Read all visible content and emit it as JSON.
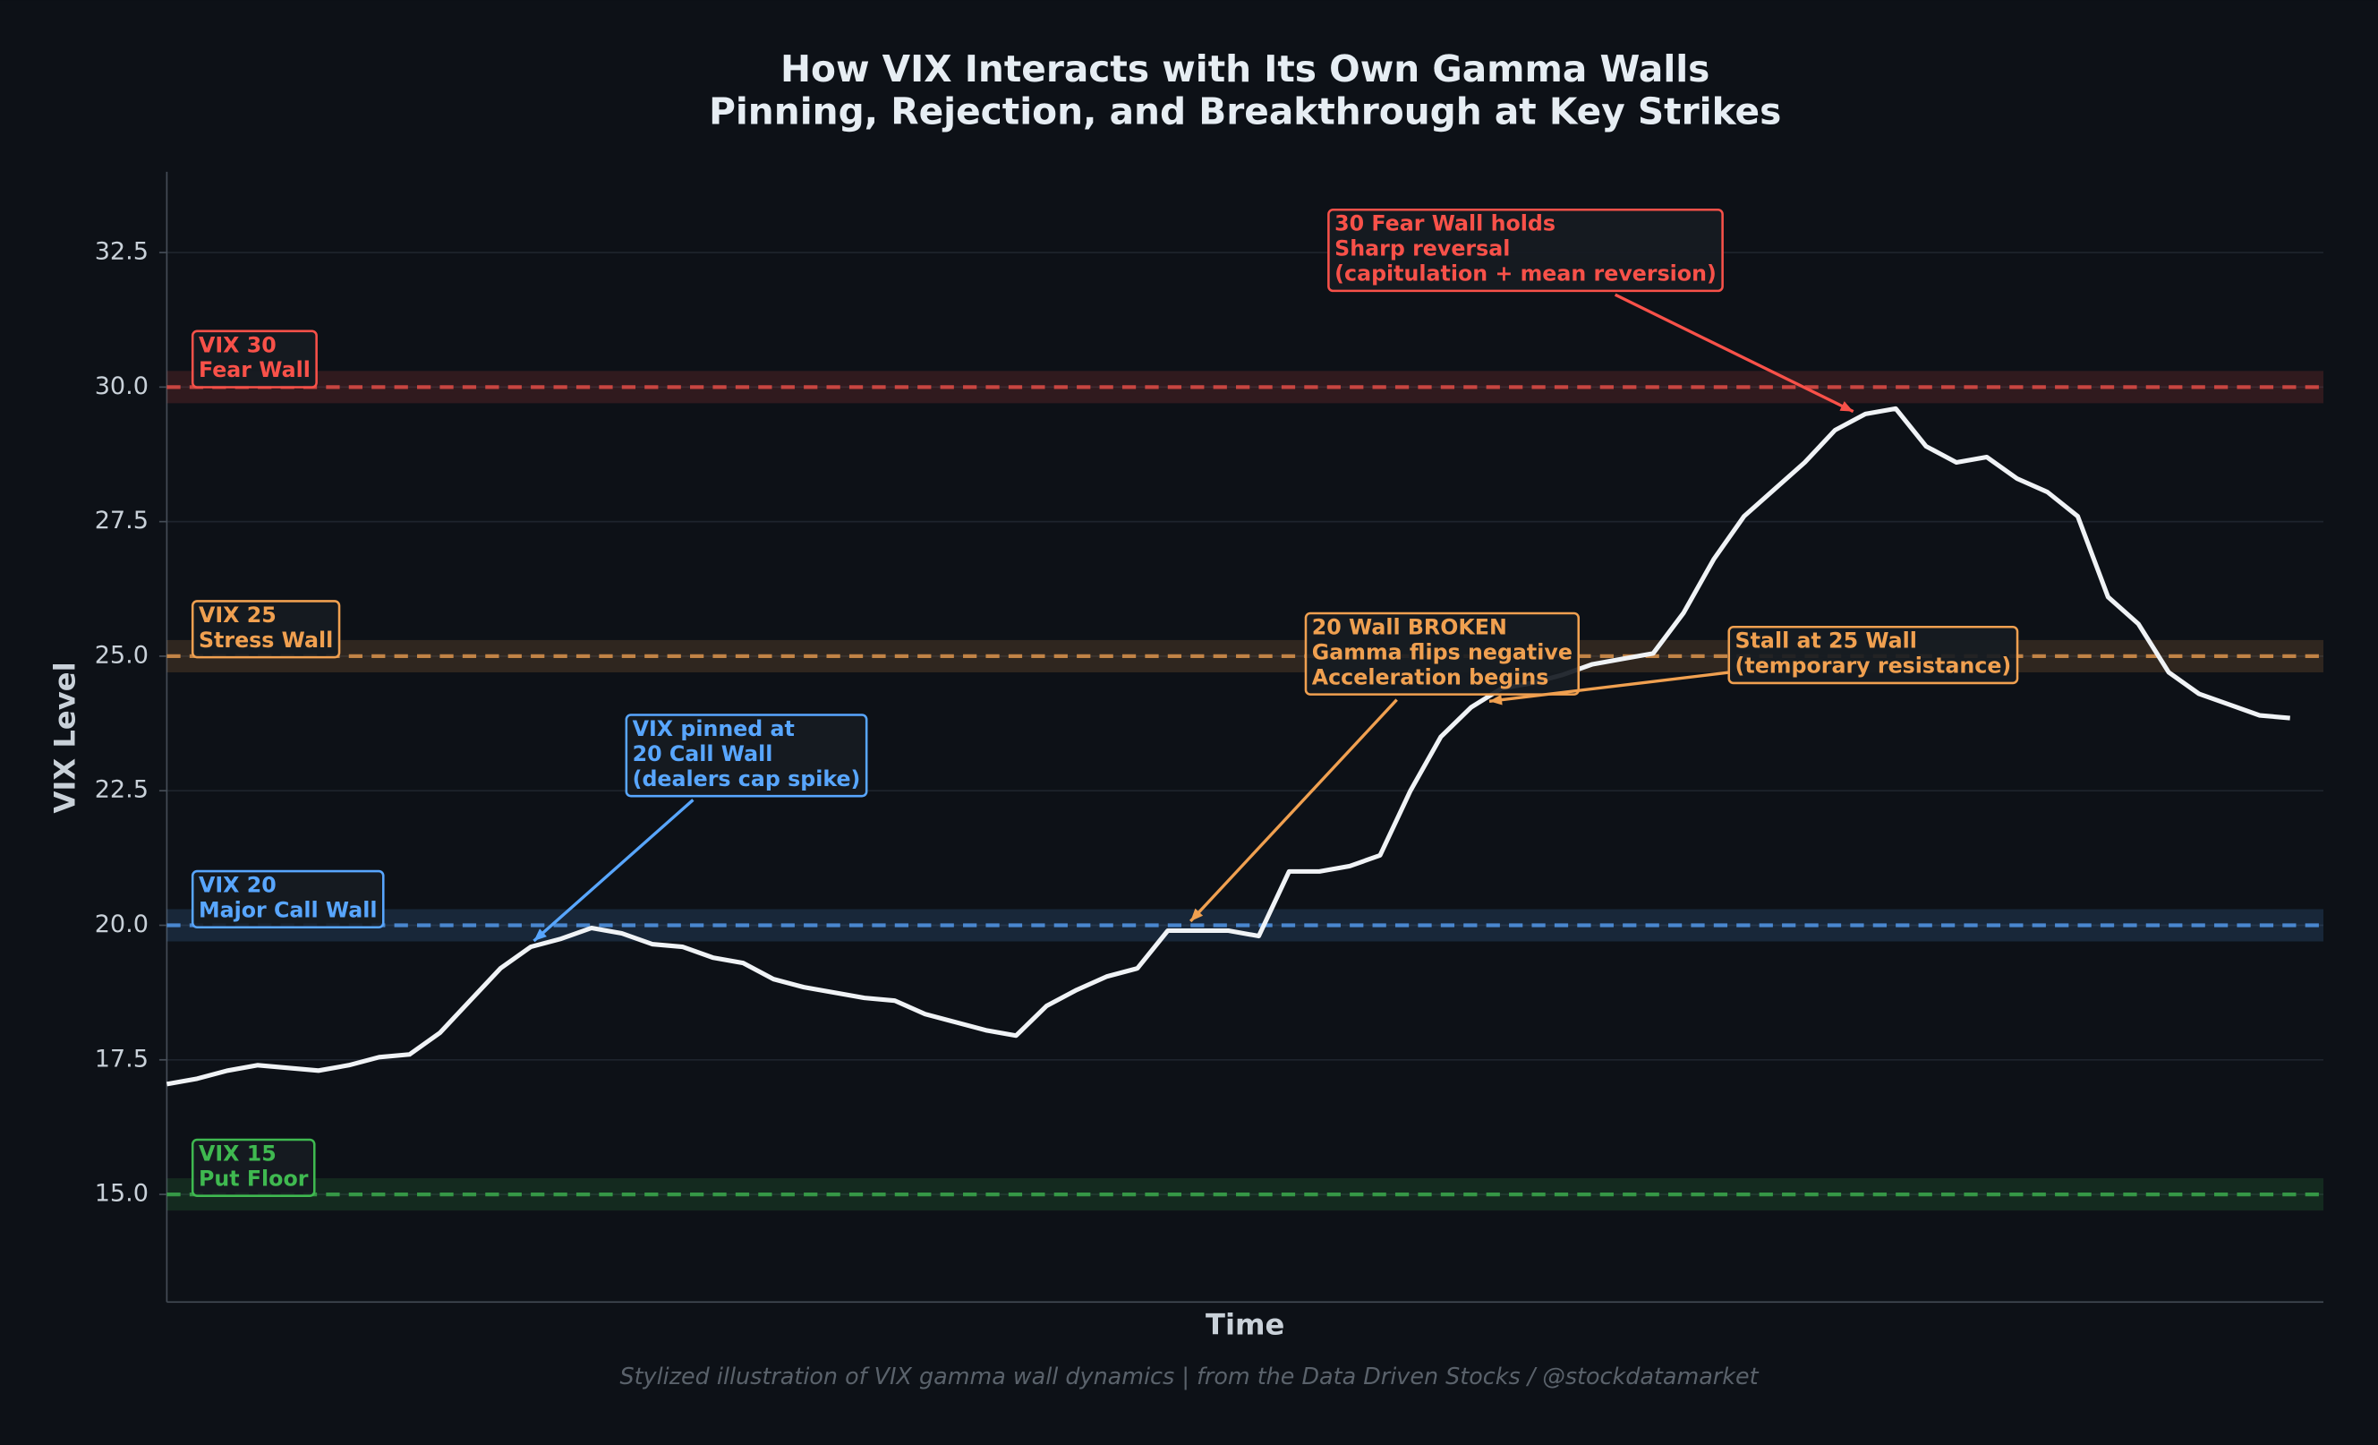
{
  "chart_data": {
    "type": "line",
    "title": "How VIX Interacts with Its Own Gamma Walls",
    "subtitle": "Pinning, Rejection, and Breakthrough at Key Strikes",
    "xlabel": "Time",
    "ylabel": "VIX Level",
    "footnote": "Stylized illustration of VIX gamma wall dynamics | from the Data Driven Stocks / @stockdatamarket",
    "ylim": [
      13,
      34
    ],
    "yticks": [
      {
        "value": 15,
        "label": "15.0"
      },
      {
        "value": 17.5,
        "label": "17.5"
      },
      {
        "value": 20,
        "label": "20.0"
      },
      {
        "value": 22.5,
        "label": "22.5"
      },
      {
        "value": 25,
        "label": "25.0"
      },
      {
        "value": 27.5,
        "label": "27.5"
      },
      {
        "value": 30,
        "label": "30.0"
      },
      {
        "value": 32.5,
        "label": "32.5"
      }
    ],
    "grid": true,
    "color": "#f0f3f6",
    "values": [
      17.05,
      17.15,
      17.3,
      17.4,
      17.35,
      17.3,
      17.4,
      17.55,
      17.6,
      18.0,
      18.6,
      19.2,
      19.6,
      19.75,
      19.95,
      19.85,
      19.65,
      19.6,
      19.4,
      19.3,
      19.0,
      18.85,
      18.75,
      18.65,
      18.6,
      18.35,
      18.2,
      18.05,
      17.95,
      18.5,
      18.8,
      19.05,
      19.2,
      19.9,
      19.9,
      19.9,
      19.8,
      21.0,
      21.0,
      21.1,
      21.3,
      22.5,
      23.5,
      24.05,
      24.4,
      24.5,
      24.65,
      24.85,
      24.95,
      25.05,
      25.8,
      26.8,
      27.6,
      28.1,
      28.6,
      29.2,
      29.5,
      29.6,
      28.9,
      28.6,
      28.7,
      28.3,
      28.05,
      27.6,
      26.1,
      25.6,
      24.7,
      24.3,
      24.1,
      23.9,
      23.85
    ],
    "walls": [
      {
        "value": 30,
        "color": "#f85149",
        "lines": [
          "VIX 30",
          "Fear Wall"
        ]
      },
      {
        "value": 25,
        "color": "#f0a050",
        "lines": [
          "VIX 25",
          "Stress Wall"
        ]
      },
      {
        "value": 20,
        "color": "#58a6ff",
        "lines": [
          "VIX 20",
          "Major Call Wall"
        ]
      },
      {
        "value": 15,
        "color": "#3fb950",
        "lines": [
          "VIX 15",
          "Put Floor"
        ]
      }
    ],
    "annotations": [
      {
        "color": "#58a6ff",
        "lines": [
          "VIX pinned at",
          "20 Call Wall",
          "(dealers cap spike)"
        ]
      },
      {
        "color": "#f0a050",
        "lines": [
          "20 Wall BROKEN",
          "Gamma flips negative",
          "Acceleration begins"
        ]
      },
      {
        "color": "#f0a050",
        "lines": [
          "Stall at 25 Wall",
          "(temporary resistance)"
        ]
      },
      {
        "color": "#f85149",
        "lines": [
          "30 Fear Wall holds",
          "Sharp reversal",
          "(capitulation + mean reversion)"
        ]
      }
    ]
  }
}
